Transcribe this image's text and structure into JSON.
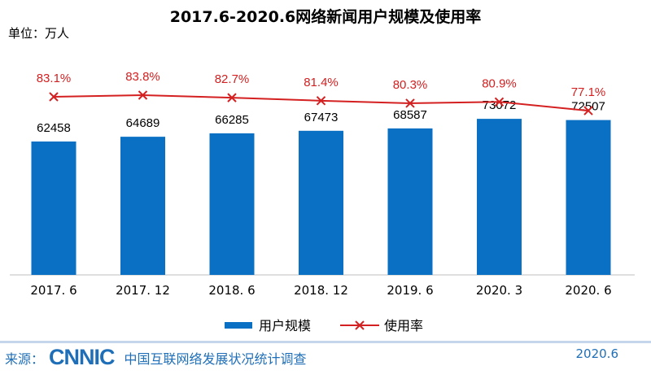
{
  "chart_data": {
    "type": "bar",
    "title": "2017.6-2020.6网络新闻用户规模及使用率",
    "unit_label": "单位：万人",
    "categories": [
      "2017.6",
      "2017.12",
      "2018.6",
      "2018.12",
      "2019.6",
      "2020.3",
      "2020.6"
    ],
    "series": [
      {
        "name": "用户规模",
        "type": "bar",
        "values": [
          62458,
          64689,
          66285,
          67473,
          68587,
          73072,
          72507
        ],
        "color": "#0a70c4"
      },
      {
        "name": "使用率",
        "type": "line",
        "unit": "%",
        "values": [
          83.1,
          83.8,
          82.7,
          81.4,
          80.3,
          80.9,
          77.1
        ],
        "color": "#d42020"
      }
    ],
    "legend": "bottom",
    "grid": false
  },
  "footer": {
    "source_label": "来源：",
    "logo": "CNNIC",
    "source_text": "中国互联网络发展状况统计调查",
    "date": "2020.6"
  }
}
